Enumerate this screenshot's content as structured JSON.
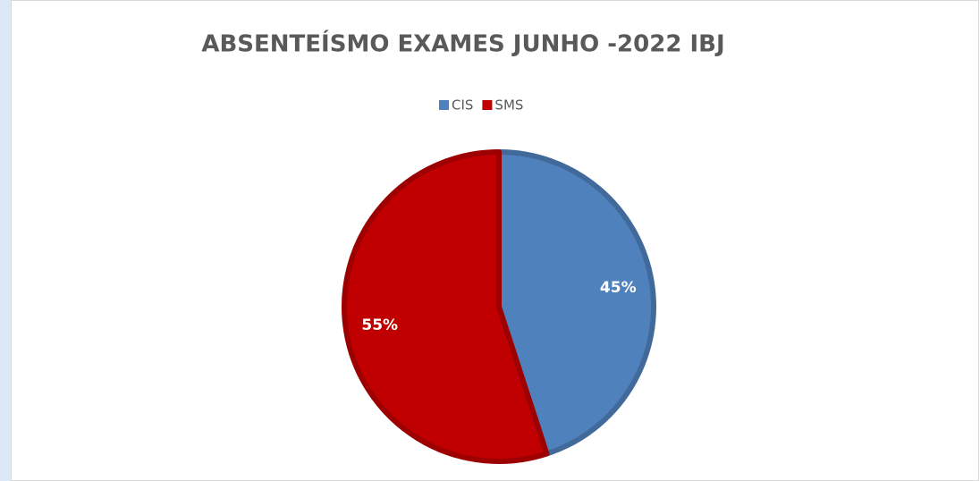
{
  "chart_data": {
    "type": "pie",
    "title": "ABSENTEÍSMO EXAMES JUNHO -2022 IBJ",
    "categories": [
      "CIS",
      "SMS"
    ],
    "values": [
      45,
      55
    ],
    "value_labels": [
      "45%",
      "55%"
    ],
    "colors": [
      "#4f81bd",
      "#c00000"
    ],
    "legend": "top"
  }
}
